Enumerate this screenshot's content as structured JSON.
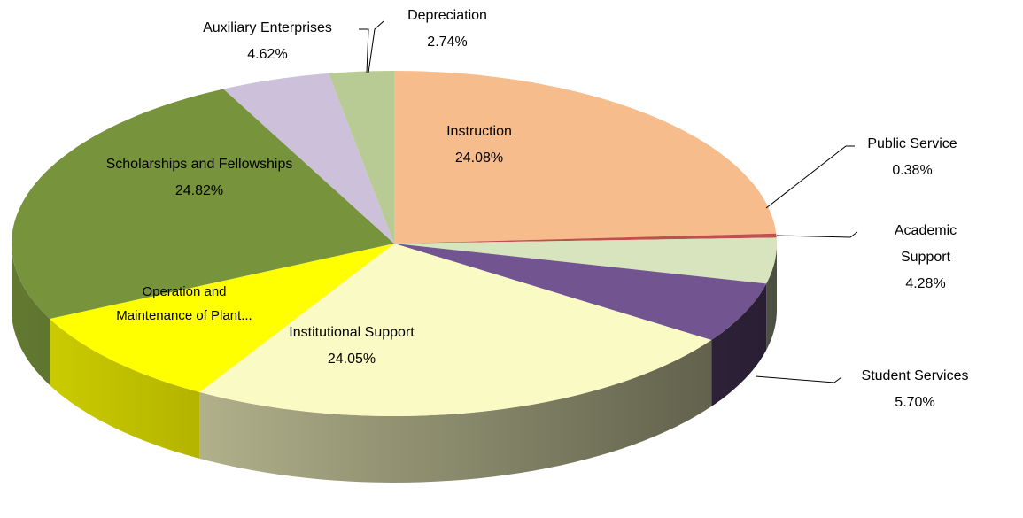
{
  "chart_data": {
    "type": "pie3d",
    "categories": [
      "Instruction",
      "Public Service",
      "Academic Support",
      "Student Services",
      "Institutional Support",
      "Operation and Maintenance of Plant...",
      "Scholarships and Fellowships",
      "Auxiliary Enterprises",
      "Depreciation"
    ],
    "values": [
      24.08,
      0.38,
      4.28,
      5.7,
      24.05,
      9.33,
      24.82,
      4.62,
      2.74
    ],
    "value_labels": [
      "24.08%",
      "0.38%",
      "4.28%",
      "5.70%",
      "24.05%",
      null,
      "24.82%",
      "4.62%",
      "2.74%"
    ],
    "colors": [
      "#f7bc8c",
      "#c0504d",
      "#d7e4bd",
      "#725590",
      "#fafac4",
      "#ffff00",
      "#77933c",
      "#ccc0da",
      "#b9cb94"
    ]
  }
}
